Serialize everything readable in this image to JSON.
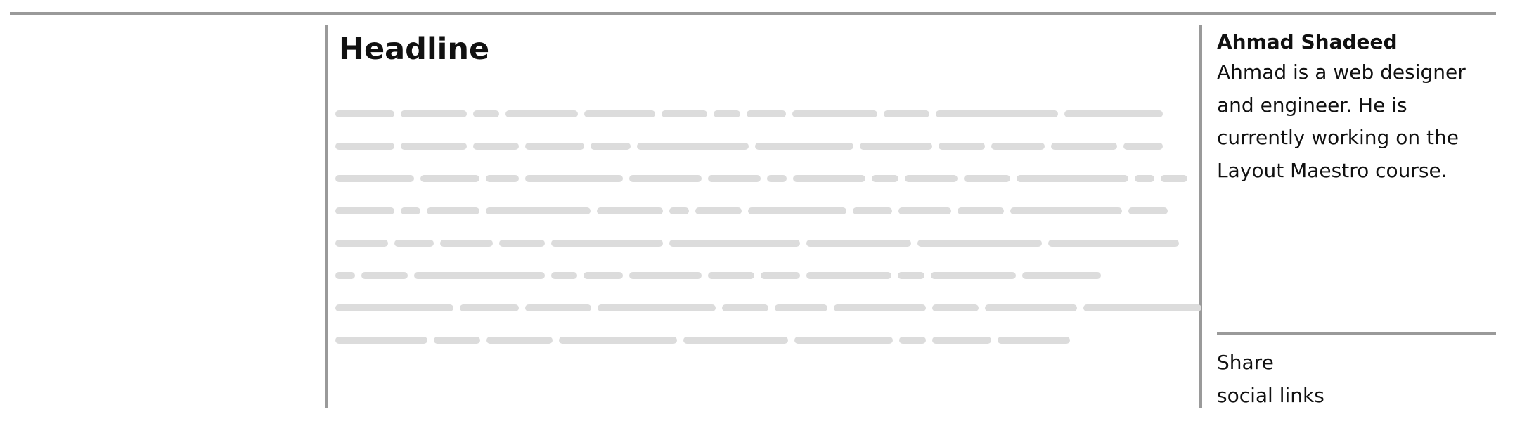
{
  "article": {
    "headline": "Headline"
  },
  "author": {
    "name": "Ahmad Shadeed",
    "bio": "Ahmad is a web designer and engineer. He is currently working on the Layout Maestro course."
  },
  "share": {
    "label": "Share",
    "links_label": "social links"
  },
  "colors": {
    "rule": "#9a9a9a",
    "placeholder": "#dcdcdc",
    "text": "#111111",
    "background": "#ffffff"
  }
}
